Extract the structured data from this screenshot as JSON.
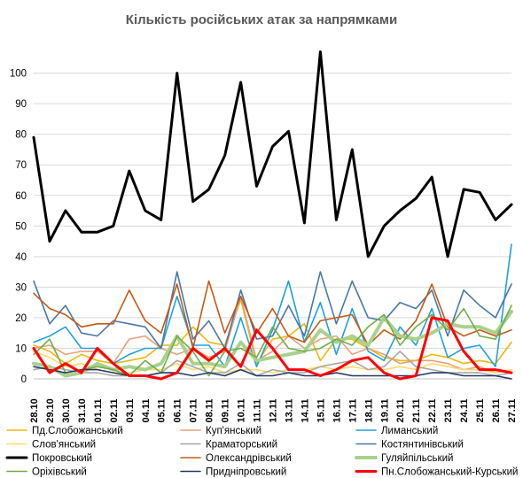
{
  "chart_data": {
    "type": "line",
    "title": "Кількість російських атак за напрямками",
    "xlabel": "",
    "ylabel": "",
    "ylim": [
      0,
      108
    ],
    "yticks": [
      "0",
      "10",
      "20",
      "30",
      "40",
      "50",
      "60",
      "70",
      "80",
      "90",
      "100"
    ],
    "grid": true,
    "legend_placement": "bottom",
    "x": [
      "28.10",
      "29.10",
      "30.10",
      "31.10",
      "01.11",
      "02.11",
      "03.11",
      "04.11",
      "05.11",
      "06.11",
      "07.11",
      "08.11",
      "09.11",
      "10.11",
      "11.11",
      "12.11",
      "13.11",
      "14.11",
      "15.11",
      "16.11",
      "17.11",
      "18.11",
      "19.11",
      "20.11",
      "21.11",
      "22.11",
      "23.11",
      "24.11",
      "25.11",
      "26.11",
      "27.11"
    ],
    "series": [
      {
        "name": "Пд.Слобожанський",
        "color": "#f2b705",
        "width": 1.6,
        "values": [
          11,
          9,
          5,
          8,
          6,
          5,
          6,
          7,
          11,
          11,
          17,
          12,
          11,
          26,
          5,
          13,
          14,
          18,
          6,
          13,
          13,
          10,
          7,
          6,
          6,
          8,
          7,
          5,
          6,
          5,
          12
        ]
      },
      {
        "name": "Куп'янський",
        "color": "#e8a07a",
        "width": 1.6,
        "values": [
          10,
          11,
          8,
          9,
          9,
          5,
          13,
          14,
          10,
          8,
          10,
          7,
          9,
          27,
          6,
          9,
          14,
          10,
          13,
          14,
          8,
          10,
          8,
          5,
          6,
          6,
          5,
          3,
          4,
          2,
          3
        ]
      },
      {
        "name": "Лиманський",
        "color": "#1ea1df",
        "width": 1.6,
        "values": [
          12,
          14,
          17,
          10,
          10,
          5,
          8,
          10,
          10,
          27,
          11,
          11,
          4,
          20,
          4,
          16,
          32,
          12,
          25,
          8,
          23,
          9,
          6,
          17,
          11,
          23,
          7,
          10,
          11,
          4,
          44
        ]
      },
      {
        "name": "Слов'янський",
        "color": "#ffd966",
        "width": 1.6,
        "values": [
          9,
          7,
          4,
          5,
          3,
          2,
          2,
          3,
          3,
          5,
          3,
          4,
          2,
          3,
          3,
          2,
          3,
          3,
          4,
          3,
          4,
          3,
          3,
          4,
          3,
          5,
          4,
          3,
          3,
          2,
          3
        ]
      },
      {
        "name": "Краматорський",
        "color": "#a6a6a6",
        "width": 1.6,
        "values": [
          3,
          4,
          3,
          2,
          2,
          1,
          1,
          1,
          2,
          6,
          4,
          2,
          2,
          5,
          1,
          3,
          2,
          2,
          4,
          5,
          6,
          3,
          4,
          9,
          4,
          3,
          2,
          2,
          2,
          1,
          2
        ]
      },
      {
        "name": "Костянтинівський",
        "color": "#4a77a9",
        "width": 1.6,
        "values": [
          32,
          18,
          24,
          15,
          14,
          19,
          18,
          17,
          10,
          35,
          13,
          19,
          10,
          29,
          13,
          14,
          24,
          14,
          35,
          18,
          32,
          20,
          19,
          25,
          23,
          29,
          14,
          29,
          24,
          20,
          31
        ]
      },
      {
        "name": "Покровський",
        "color": "#000000",
        "width": 3,
        "values": [
          79,
          45,
          55,
          48,
          48,
          50,
          68,
          55,
          52,
          100,
          58,
          62,
          73,
          97,
          63,
          76,
          81,
          51,
          107,
          52,
          75,
          40,
          50,
          55,
          59,
          66,
          40,
          62,
          61,
          52,
          57
        ]
      },
      {
        "name": "Олександрівський",
        "color": "#c55a11",
        "width": 1.6,
        "values": [
          28,
          23,
          21,
          17,
          18,
          18,
          29,
          19,
          15,
          31,
          10,
          32,
          15,
          27,
          15,
          23,
          14,
          12,
          19,
          20,
          21,
          11,
          16,
          13,
          19,
          31,
          17,
          14,
          16,
          14,
          16
        ]
      },
      {
        "name": "Гуляйпільський",
        "color": "#a9d18e",
        "width": 4,
        "values": [
          5,
          4,
          1,
          2,
          5,
          3,
          4,
          3,
          5,
          14,
          5,
          5,
          4,
          12,
          6,
          7,
          8,
          9,
          16,
          12,
          14,
          11,
          20,
          14,
          13,
          15,
          18,
          17,
          17,
          15,
          22
        ]
      },
      {
        "name": "Оріхівський",
        "color": "#70ad47",
        "width": 1.6,
        "values": [
          8,
          13,
          2,
          3,
          4,
          3,
          1,
          6,
          2,
          14,
          9,
          1,
          9,
          10,
          7,
          17,
          10,
          9,
          10,
          13,
          11,
          17,
          21,
          11,
          17,
          21,
          16,
          23,
          14,
          13,
          24
        ]
      },
      {
        "name": "Придніпровський",
        "color": "#203864",
        "width": 1.6,
        "values": [
          4,
          3,
          2,
          3,
          3,
          2,
          1,
          1,
          2,
          2,
          1,
          2,
          1,
          3,
          1,
          1,
          2,
          1,
          1,
          2,
          1,
          1,
          1,
          1,
          1,
          2,
          2,
          1,
          1,
          1,
          0
        ]
      },
      {
        "name": "Пн.Слобожанський-Курський",
        "color": "#ff0000",
        "width": 3,
        "values": [
          10,
          2,
          5,
          2,
          10,
          5,
          1,
          1,
          0,
          2,
          10,
          6,
          10,
          4,
          16,
          10,
          3,
          3,
          1,
          3,
          6,
          7,
          2,
          0,
          1,
          20,
          19,
          9,
          3,
          3,
          2
        ]
      }
    ]
  }
}
